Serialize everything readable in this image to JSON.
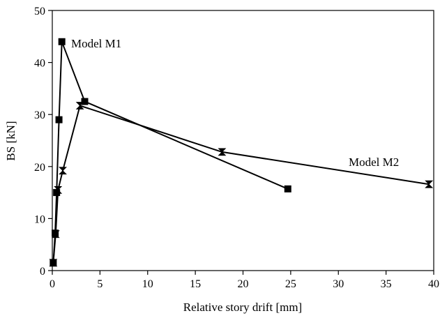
{
  "chart_data": {
    "type": "line",
    "title": "",
    "xlabel": "Relative story drift [mm]",
    "ylabel": "BS [kN]",
    "xlim": [
      0,
      40
    ],
    "ylim": [
      0,
      50
    ],
    "xticks": [
      0,
      5,
      10,
      15,
      20,
      25,
      30,
      35,
      40
    ],
    "yticks": [
      0,
      10,
      20,
      30,
      40,
      50
    ],
    "grid": false,
    "legend": "none",
    "series": [
      {
        "name": "Model M1",
        "marker": "square",
        "color": "#000000",
        "x": [
          0.1,
          0.3,
          0.45,
          0.7,
          1.0,
          3.4,
          24.7
        ],
        "y": [
          1.5,
          7.2,
          15.0,
          29.0,
          44.0,
          32.5,
          15.7
        ]
      },
      {
        "name": "Model M2",
        "marker": "bowtie",
        "color": "#000000",
        "x": [
          0.1,
          0.35,
          0.6,
          1.1,
          2.9,
          17.8,
          39.5
        ],
        "y": [
          1.5,
          7.0,
          15.5,
          19.2,
          31.7,
          22.8,
          16.6
        ]
      }
    ],
    "annotations": [
      {
        "text": "Model M1",
        "series": 0
      },
      {
        "text": "Model M2",
        "series": 1
      }
    ]
  }
}
